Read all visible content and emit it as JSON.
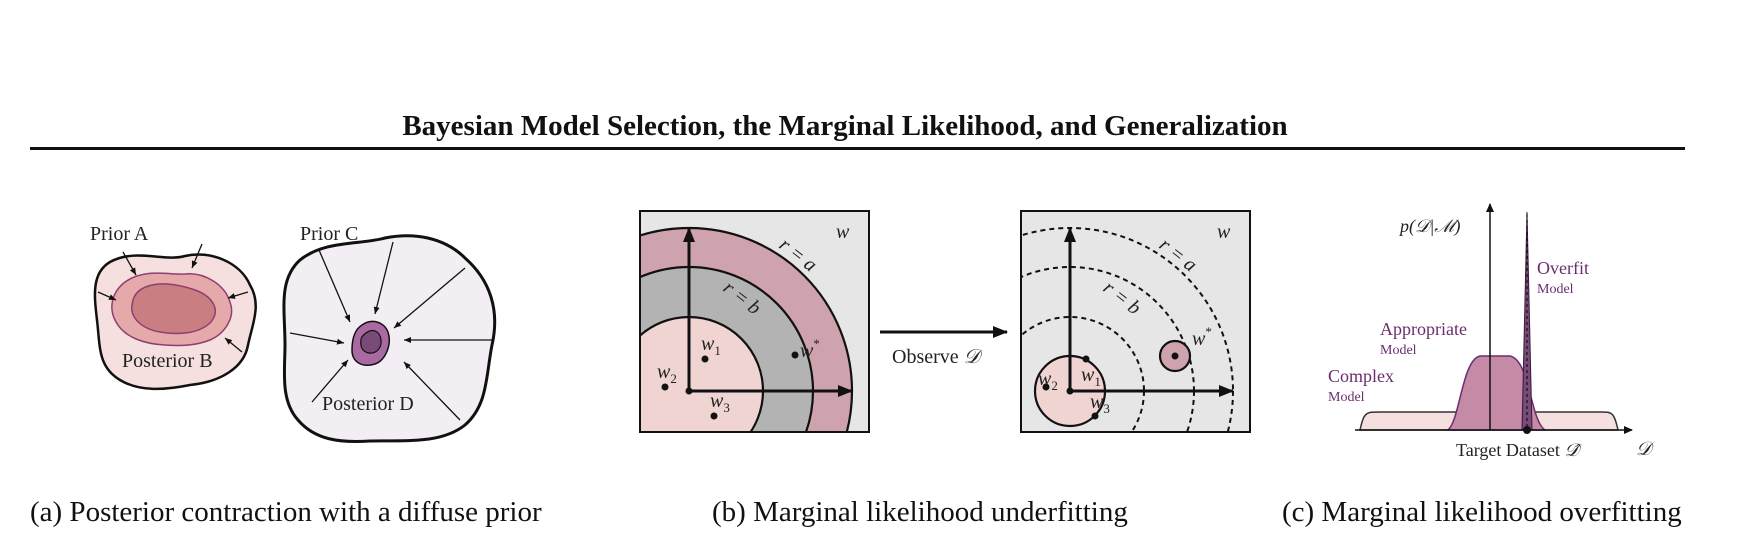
{
  "title": "Bayesian Model Selection, the Marginal Likelihood, and Generalization",
  "colors": {
    "prior_light": "#f6e0df",
    "posterior_b": "#c97e82",
    "prior_c": "#f3eef3",
    "posterior_d": "#7a4a78",
    "ring_a": "#cfa3ad",
    "ring_b": "#b3b3b3",
    "inner_disk": "#efd4d2",
    "panel_bg": "#e6e6e6",
    "accent_purple": "#6b2d6f"
  },
  "panel_a": {
    "prior_a": "Prior A",
    "posterior_b": "Posterior B",
    "prior_c": "Prior C",
    "posterior_d": "Posterior D",
    "caption": "(a) Posterior contraction with a diffuse prior"
  },
  "panel_b": {
    "w_label": "w",
    "r_a": "r = a",
    "r_b": "r = b",
    "w1": "w",
    "w1_sub": "1",
    "w2": "w",
    "w2_sub": "2",
    "w3": "w",
    "w3_sub": "3",
    "wstar": "w",
    "wstar_sup": "*",
    "observe": "Observe",
    "observe_sym": "𝒟",
    "caption": "(b) Marginal likelihood underfitting"
  },
  "panel_c": {
    "y_label": "p(𝒟|ℳ)",
    "x_symbol": "𝒟",
    "target": "Target Dataset",
    "target_sym": "𝒟̂",
    "overfit": "Overfit",
    "appropriate": "Appropriate",
    "complex": "Complex",
    "model": "Model",
    "caption": "(c) Marginal likelihood overfitting"
  }
}
